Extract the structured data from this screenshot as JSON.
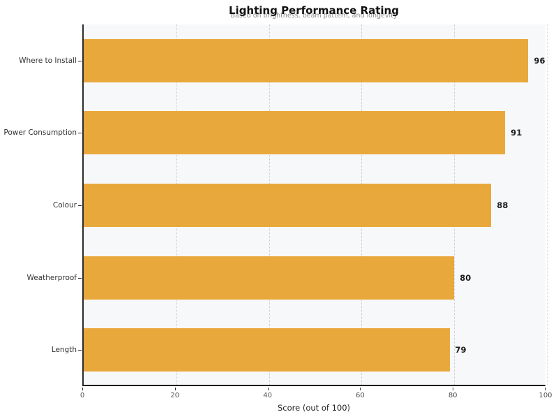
{
  "chart_data": {
    "type": "bar",
    "orientation": "horizontal",
    "title": "Lighting Performance Rating",
    "subtitle": "Based on brightness, beam pattern, and longevity",
    "categories": [
      "Where to Install",
      "Power Consumption",
      "Colour",
      "Weatherproof",
      "Length"
    ],
    "values": [
      96,
      91,
      88,
      80,
      79
    ],
    "value_labels": [
      "96",
      "91",
      "88",
      "80",
      "79"
    ],
    "xlabel": "Score (out of 100)",
    "xlim": [
      0,
      100
    ],
    "xticks": [
      0,
      20,
      40,
      60,
      80,
      100
    ],
    "xtick_labels": [
      "0",
      "20",
      "40",
      "60",
      "80",
      "100"
    ],
    "grid": "vertical-dotted",
    "legend": "none",
    "colors": {
      "bar": "#E9A83C",
      "plot_background": "#f7f8fa",
      "figure_background": "#ffffff",
      "gridline": "#c9c9c9",
      "title_text": "#111111",
      "subtitle_text": "#8a8a8a",
      "tick_text": "#555555",
      "value_text": "#1c1c1c"
    }
  }
}
